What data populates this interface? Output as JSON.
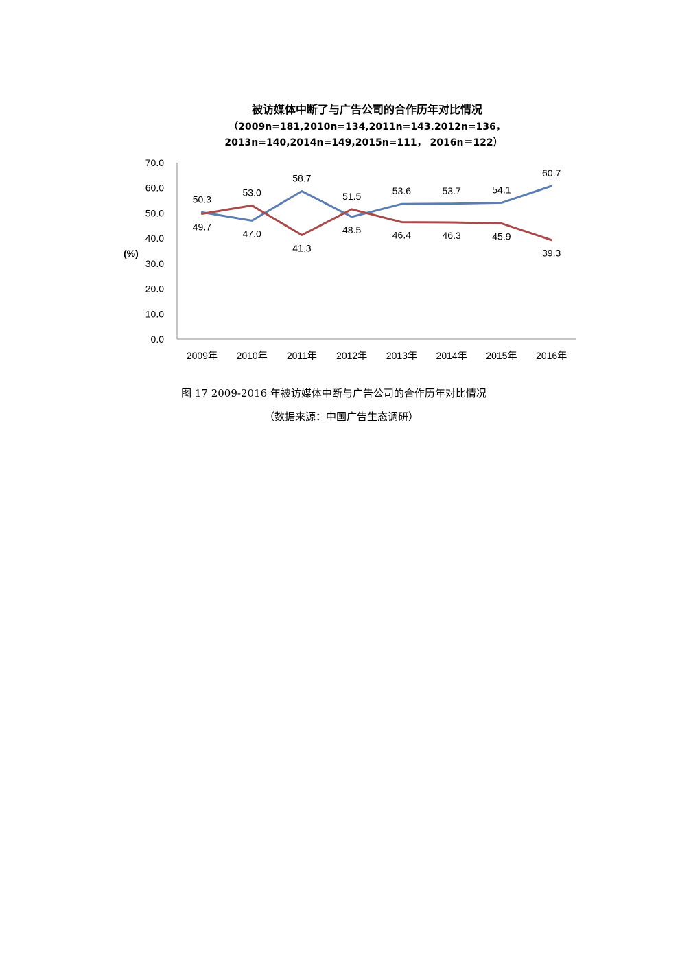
{
  "chart_data": {
    "type": "line",
    "title": "被访媒体中断了与广告公司的合作历年对比情况",
    "subtitle_line1": "（2009n=181,2010n=134,2011n=143.2012n=136，",
    "subtitle_line2": "2013n=140,2014n=149,2015n=111， 2016n＝122）",
    "ylabel": "(%)",
    "xlabel": "",
    "ylim": [
      0,
      70
    ],
    "yticks": [
      "0.0",
      "10.0",
      "20.0",
      "30.0",
      "40.0",
      "50.0",
      "60.0",
      "70.0"
    ],
    "categories": [
      "2009年",
      "2010年",
      "2011年",
      "2012年",
      "2013年",
      "2014年",
      "2015年",
      "2016年"
    ],
    "grid": false,
    "legend": "none",
    "series": [
      {
        "color": "#5B7DB1",
        "values": [
          50.3,
          47.0,
          58.7,
          48.5,
          53.6,
          53.7,
          54.1,
          60.7
        ],
        "labels": [
          "50.3",
          "47.0",
          "58.7",
          "48.5",
          "53.6",
          "53.7",
          "54.1",
          "60.7"
        ]
      },
      {
        "color": "#A94A4A",
        "values": [
          49.7,
          53.0,
          41.3,
          51.5,
          46.4,
          46.3,
          45.9,
          39.3
        ],
        "labels": [
          "49.7",
          "53.0",
          "41.3",
          "51.5",
          "46.4",
          "46.3",
          "45.9",
          "39.3"
        ]
      }
    ]
  },
  "caption": "图 17 2009-2016 年被访媒体中断与广告公司的合作历年对比情况",
  "source": "（数据来源：中国广告生态调研）"
}
